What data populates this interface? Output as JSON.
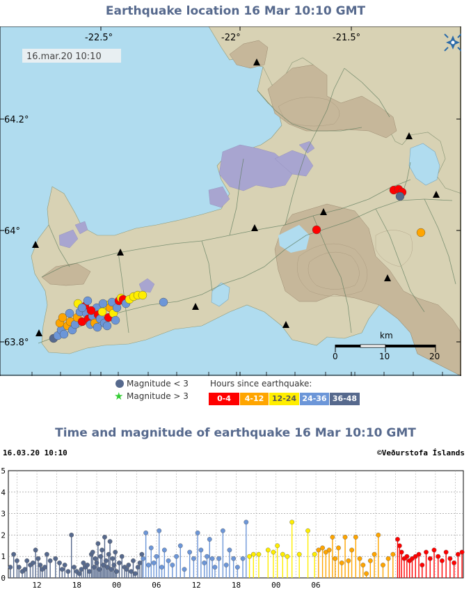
{
  "map": {
    "title": "Earthquake location   16 Mar 10:10 GMT",
    "timestamp_label": "16.mar.20  10:10",
    "lon_labels": [
      "-22.5°",
      "-22°",
      "-21.5°"
    ],
    "lat_labels": [
      "64.2°",
      "64°",
      "63.8°"
    ],
    "scale_label": "km",
    "scale_ticks": [
      "0",
      "10",
      "20"
    ],
    "logo": "vedurstofa-logo-icon",
    "colors": {
      "sea": "#b0dcef",
      "land": "#d8d2b4",
      "highland": "#c6b79a",
      "lava": "#a8a5d0",
      "roads": "#5b7a5c",
      "volcano": "#000000"
    }
  },
  "legend": {
    "magnitude_small": "Magnitude < 3",
    "magnitude_large": "Magnitude > 3",
    "hours_title": "Hours since earthquake:",
    "hours": [
      {
        "label": "0-4",
        "color": "#ff0000",
        "text": "#ffffff"
      },
      {
        "label": "4-12",
        "color": "#ffa500",
        "text": "#ffffff"
      },
      {
        "label": "12-24",
        "color": "#ffee00",
        "text": "#555555"
      },
      {
        "label": "24-36",
        "color": "#6c96d8",
        "text": "#ffffff"
      },
      {
        "label": "36-48",
        "color": "#56698d",
        "text": "#ffffff"
      }
    ]
  },
  "chart": {
    "title": "Time and magnitude of earthquake   16 Mar 10:10 GMT",
    "timestamp_label": "16.03.20  10:10",
    "copyright": "©Veðurstofa Íslands"
  },
  "chart_data": {
    "type": "scatter",
    "title": "Time and magnitude of earthquake   16 Mar 10:10 GMT",
    "xlabel": "",
    "ylabel": "",
    "x_ticks": [
      "12",
      "18",
      "00",
      "06",
      "12",
      "18",
      "00",
      "06"
    ],
    "ylim": [
      0,
      5
    ],
    "y_ticks": [
      0,
      1,
      2,
      3,
      4,
      5
    ],
    "grid": true,
    "series": [
      {
        "color": "#56698d",
        "x": [
          -46,
          -45.5,
          -45,
          -44.7,
          -44.2,
          -43.8,
          -43.5,
          -43,
          -42.6,
          -42.2,
          -41.8,
          -41.5,
          -41.2,
          -40.8,
          -40.5,
          -40,
          -39.2,
          -38.6,
          -38.2,
          -37.8,
          -37.3,
          -36.8,
          -36.4,
          -36,
          -35.6,
          -35.3,
          -35,
          -34.7,
          -34.4,
          -34.1,
          -33.8,
          -33.6,
          -33.4,
          -33.2,
          -33,
          -32.8,
          -32.6,
          -32.4,
          -32.2,
          -32,
          -31.8,
          -31.6,
          -31.4,
          -31.2,
          -31,
          -30.8,
          -30.6,
          -30.4,
          -30.2,
          -30,
          -29.6,
          -29.2,
          -28.8,
          -28.5,
          -28.2,
          -27.8,
          -27.5,
          -27.2,
          -26.8,
          -26.5,
          -26.2
        ],
        "y": [
          0.5,
          1.1,
          0.8,
          0.5,
          0.3,
          0.4,
          0.8,
          0.6,
          0.7,
          1.3,
          0.9,
          0.6,
          0.4,
          0.5,
          1.1,
          0.8,
          0.9,
          0.7,
          0.4,
          0.6,
          0.3,
          2.0,
          0.5,
          0.3,
          0.2,
          0.4,
          0.7,
          0.5,
          0.6,
          0.3,
          1.1,
          1.2,
          0.5,
          0.9,
          0.7,
          1.6,
          0.4,
          1.0,
          1.3,
          0.6,
          1.9,
          0.8,
          0.5,
          1.1,
          1.7,
          0.4,
          0.9,
          0.6,
          1.2,
          0.3,
          0.7,
          1.0,
          0.5,
          0.4,
          0.6,
          0.3,
          0.8,
          0.2,
          0.5,
          0.7,
          1.1
        ]
      },
      {
        "color": "#6c96d8",
        "x": [
          -26,
          -25.6,
          -25.2,
          -24.8,
          -24.4,
          -24,
          -23.6,
          -23.2,
          -22.8,
          -22.2,
          -21.6,
          -21,
          -20.4,
          -19.8,
          -19,
          -18.4,
          -17.8,
          -17.3,
          -16.8,
          -16.4,
          -16,
          -15.6,
          -15.2,
          -14.6,
          -14,
          -13.5,
          -13,
          -12.4,
          -11.8,
          -11,
          -10.5
        ],
        "y": [
          0.9,
          2.1,
          0.6,
          1.4,
          0.7,
          1.0,
          2.2,
          0.5,
          1.3,
          0.8,
          0.6,
          1.0,
          1.5,
          0.4,
          1.2,
          0.9,
          2.1,
          1.3,
          0.7,
          1.0,
          1.8,
          0.9,
          0.5,
          0.9,
          2.2,
          0.6,
          1.3,
          0.9,
          0.5,
          0.9,
          2.6
        ]
      },
      {
        "color": "#ffee00",
        "x": [
          -10,
          -9.4,
          -8.6,
          -7.2,
          -6.4,
          -5.8,
          -5,
          -4.3,
          -3.6,
          -2.5,
          -1.2,
          -0.2
        ],
        "y": [
          1.0,
          1.1,
          1.1,
          1.3,
          1.2,
          1.5,
          1.1,
          1.0,
          2.6,
          1.1,
          2.2,
          1.1
        ]
      },
      {
        "color": "#ffa500",
        "x": [
          0.4,
          1.0,
          1.5,
          2.0,
          2.5,
          2.9,
          3.4,
          3.9,
          4.4,
          4.9,
          5.4,
          6.0,
          6.6,
          7.1,
          7.6,
          8.2,
          8.8,
          9.4,
          10.1,
          10.9,
          11.6
        ],
        "y": [
          1.3,
          1.4,
          1.2,
          1.3,
          1.9,
          0.9,
          1.4,
          0.7,
          1.9,
          0.8,
          1.3,
          1.9,
          0.9,
          0.6,
          0.2,
          0.8,
          1.1,
          2.0,
          0.6,
          0.9,
          1.1
        ]
      },
      {
        "color": "#ff0000",
        "x": [
          12.3,
          12.6,
          12.9,
          13.3,
          13.7,
          14.1,
          14.5,
          15.0,
          15.5,
          16.0,
          16.6,
          17.2,
          17.8,
          18.4,
          19.0,
          19.6,
          20.2,
          20.8,
          21.4,
          22.0
        ],
        "y": [
          1.8,
          1.5,
          1.2,
          0.9,
          1.0,
          0.8,
          0.9,
          1.0,
          1.1,
          0.6,
          1.2,
          0.9,
          1.3,
          1.0,
          0.8,
          1.2,
          0.9,
          0.7,
          1.1,
          1.2
        ]
      }
    ]
  }
}
